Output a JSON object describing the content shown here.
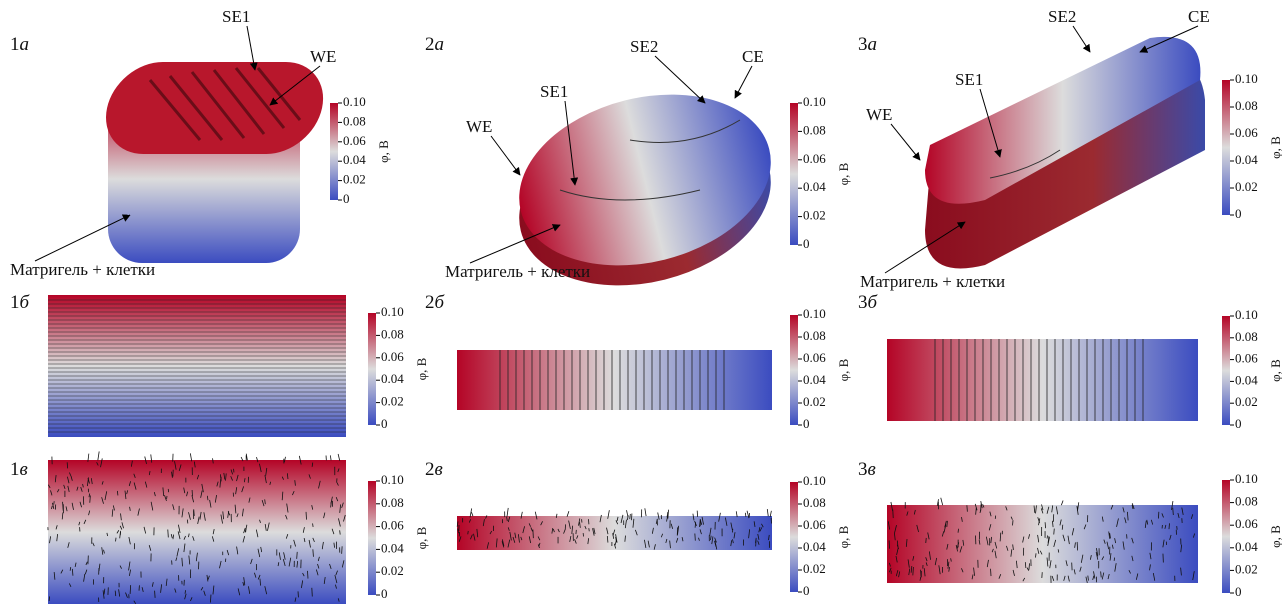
{
  "colorbar": {
    "label": "φ, В",
    "ticks": [
      "0.10",
      "0.08",
      "0.06",
      "0.04",
      "0.02",
      "0"
    ]
  },
  "panels": [
    {
      "num": "1",
      "letter": "а",
      "annotations": [
        "SE1",
        "WE",
        "Матригель + клетки"
      ]
    },
    {
      "num": "2",
      "letter": "а",
      "annotations": [
        "SE2",
        "CE",
        "SE1",
        "WE",
        "Матригель + клетки"
      ]
    },
    {
      "num": "3",
      "letter": "а",
      "annotations": [
        "SE2",
        "CE",
        "SE1",
        "WE",
        "Матригель + клетки"
      ]
    },
    {
      "num": "1",
      "letter": "б",
      "annotations": []
    },
    {
      "num": "2",
      "letter": "б",
      "annotations": []
    },
    {
      "num": "3",
      "letter": "б",
      "annotations": []
    },
    {
      "num": "1",
      "letter": "в",
      "annotations": []
    },
    {
      "num": "2",
      "letter": "в",
      "annotations": []
    },
    {
      "num": "3",
      "letter": "в",
      "annotations": []
    }
  ]
}
